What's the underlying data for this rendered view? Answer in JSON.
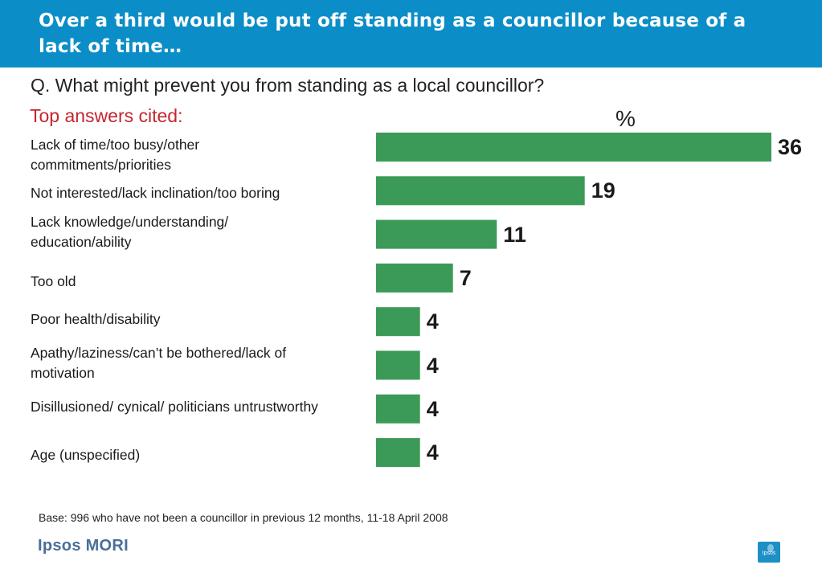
{
  "header": {
    "title": "Over a third would be put off standing as a councillor  because of a lack of time…"
  },
  "question": "Q. What might prevent you from standing as a local councillor?",
  "subheading": "Top answers cited:",
  "footer": {
    "base_note": "Base: 996  who have not been a councillor in previous 12 months, 11-18 April 2008",
    "brand": "Ipsos MORI",
    "logo_text": "Ipsos"
  },
  "colors": {
    "header_bg": "#0b8ec8",
    "bar": "#3b9a57",
    "subheading": "#c4262e"
  },
  "chart_data": {
    "type": "bar",
    "orientation": "horizontal",
    "unit_label": "%",
    "categories": [
      "Lack of time/too busy/other commitments/priorities",
      "Not interested/lack inclination/too boring",
      "Lack knowledge/understanding/ education/ability",
      "Too old",
      "Poor health/disability",
      "Apathy/laziness/can’t be bothered/lack of motivation",
      "Disillusioned/ cynical/ politicians untrustworthy",
      "Age (unspecified)"
    ],
    "values": [
      36,
      19,
      11,
      7,
      4,
      4,
      4,
      4
    ],
    "value_labels": [
      "36",
      "19",
      "11",
      "7",
      "4",
      "4",
      "4",
      "4"
    ],
    "xlim": [
      0,
      36
    ],
    "grid": false,
    "legend": "none"
  }
}
